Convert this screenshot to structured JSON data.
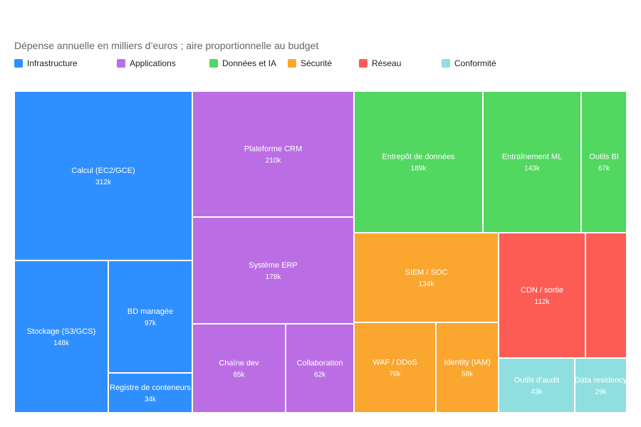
{
  "chart_data": {
    "type": "treemap",
    "title": "",
    "subtitle": "Dépense annuelle en milliers d’euros ; aire proportionnelle au budget",
    "legend_position": "top-left",
    "groups": [
      {
        "name": "Infrastructure",
        "color": "#2f8fff"
      },
      {
        "name": "Applications",
        "color": "#bb6ee4"
      },
      {
        "name": "Données et IA",
        "color": "#52d761"
      },
      {
        "name": "Sécurité",
        "color": "#fba62f"
      },
      {
        "name": "Réseau",
        "color": "#fd5c55"
      },
      {
        "name": "Conformité",
        "color": "#90dfe0"
      }
    ],
    "tiles": [
      {
        "group": "Infrastructure",
        "label": "Calcul (EC2/GCE)",
        "value": 312,
        "value_label": "312k"
      },
      {
        "group": "Infrastructure",
        "label": "Stockage (S3/GCS)",
        "value": 148,
        "value_label": "148k"
      },
      {
        "group": "Infrastructure",
        "label": "BD managée",
        "value": 97,
        "value_label": "97k"
      },
      {
        "group": "Infrastructure",
        "label": "Registre de conteneurs",
        "value": 34,
        "value_label": "34k"
      },
      {
        "group": "Applications",
        "label": "Plateforme CRM",
        "value": 210,
        "value_label": "210k"
      },
      {
        "group": "Applications",
        "label": "Système ERP",
        "value": 178,
        "value_label": "178k"
      },
      {
        "group": "Applications",
        "label": "Chaîne dev",
        "value": 85,
        "value_label": "85k"
      },
      {
        "group": "Applications",
        "label": "Collaboration",
        "value": 62,
        "value_label": "62k"
      },
      {
        "group": "Données et IA",
        "label": "Entrepôt de données",
        "value": 189,
        "value_label": "189k"
      },
      {
        "group": "Données et IA",
        "label": "Entraînement ML",
        "value": 143,
        "value_label": "143k"
      },
      {
        "group": "Données et IA",
        "label": "Outils BI",
        "value": 67,
        "value_label": "67k"
      },
      {
        "group": "Sécurité",
        "label": "SIEM / SOC",
        "value": 134,
        "value_label": "134k"
      },
      {
        "group": "Sécurité",
        "label": "WAF / DDoS",
        "value": 76,
        "value_label": "76k"
      },
      {
        "group": "Sécurité",
        "label": "Identity (IAM)",
        "value": 58,
        "value_label": "58k"
      },
      {
        "group": "Réseau",
        "label": "CDN / sortie",
        "value": 112,
        "value_label": "112k"
      },
      {
        "group": "Réseau",
        "label": "",
        "value": null,
        "value_label": ""
      },
      {
        "group": "Conformité",
        "label": "Outils d’audit",
        "value": 43,
        "value_label": "43k"
      },
      {
        "group": "Conformité",
        "label": "Data residency",
        "value": 29,
        "value_label": "29k"
      }
    ]
  }
}
